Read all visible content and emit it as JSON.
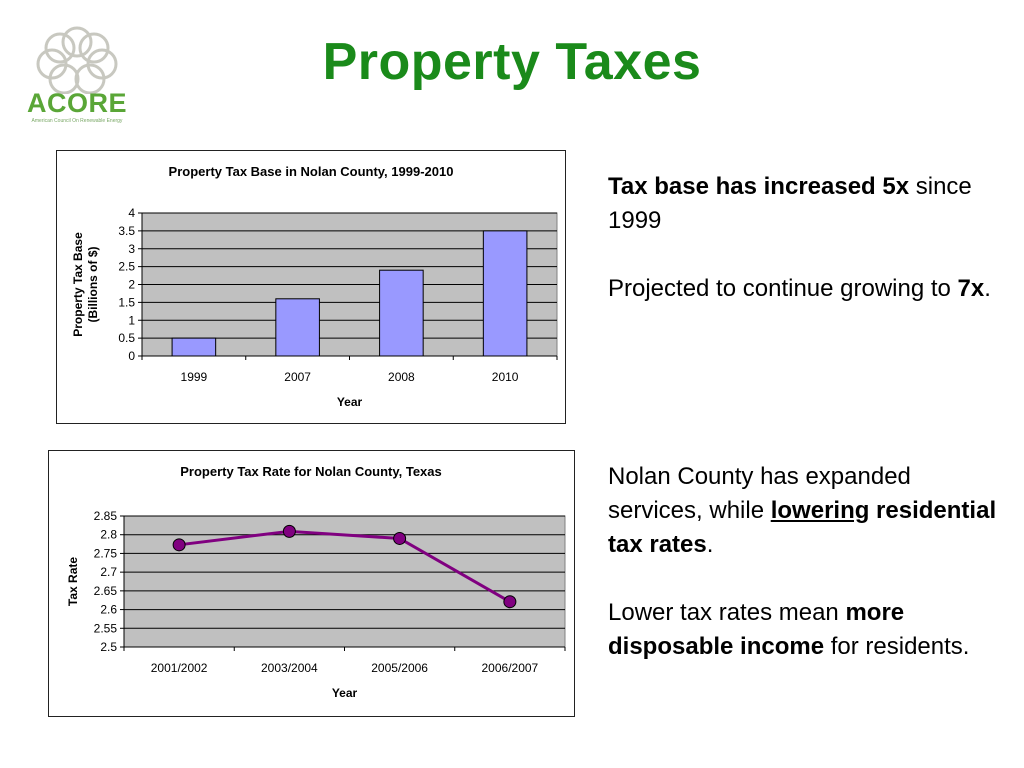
{
  "slide": {
    "title": "Property Taxes"
  },
  "logo": {
    "text": "ACORE",
    "tagline": "American Council On Renewable Energy"
  },
  "colors": {
    "title": "#1a8a1a",
    "logo": "#5aa637",
    "bar_fill": "#9999ff",
    "line": "#800080",
    "plot_bg": "#c0c0c0"
  },
  "chart_data": [
    {
      "type": "bar",
      "title": "Property Tax Base in Nolan County, 1999-2010",
      "xlabel": "Year",
      "ylabel": "Property Tax Base (Billions of $)",
      "ylabel_lines": [
        "Property Tax Base",
        "(Billions of $)"
      ],
      "categories": [
        "1999",
        "2007",
        "2008",
        "2010"
      ],
      "values": [
        0.5,
        1.6,
        2.4,
        3.5
      ],
      "ylim": [
        0,
        4
      ],
      "yticks": [
        "0",
        "0.5",
        "1",
        "1.5",
        "2",
        "2.5",
        "3",
        "3.5",
        "4"
      ],
      "grid": true,
      "legend": "none"
    },
    {
      "type": "line",
      "title": "Property Tax Rate for Nolan County, Texas",
      "xlabel": "Year",
      "ylabel": "Tax Rate",
      "categories": [
        "2001/2002",
        "2003/2004",
        "2005/2006",
        "2006/2007"
      ],
      "values": [
        2.773,
        2.809,
        2.79,
        2.621
      ],
      "ylim": [
        2.5,
        2.85
      ],
      "yticks": [
        "2.5",
        "2.55",
        "2.6",
        "2.65",
        "2.7",
        "2.75",
        "2.8",
        "2.85"
      ],
      "grid": true,
      "legend": "none"
    }
  ],
  "text_blocks": {
    "block1": {
      "p1_bold": "Tax base has increased 5x",
      "p1_rest": " since 1999",
      "p2_pre": "Projected to continue growing to ",
      "p2_bold": "7x",
      "p2_post": "."
    },
    "block2": {
      "p1_pre": "Nolan County has expanded services, while ",
      "p1_bold_ul": "lowering",
      "p1_bold": " residential tax rates",
      "p1_post": ".",
      "p2_pre": "Lower tax rates mean ",
      "p2_bold": "more disposable income",
      "p2_post": " for residents."
    }
  }
}
